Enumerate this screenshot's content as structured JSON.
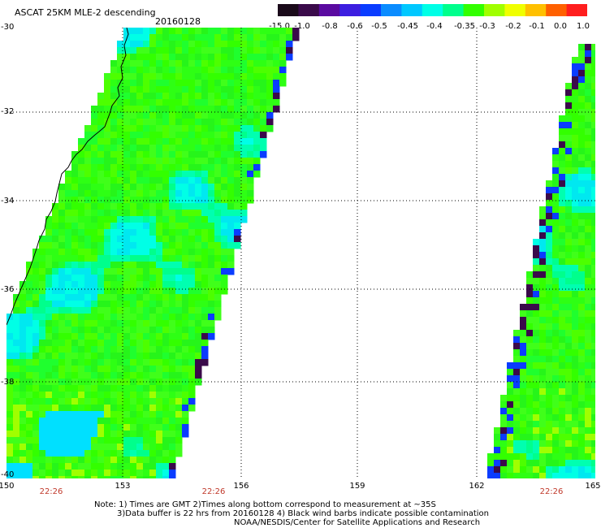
{
  "title": "ASCAT 25KM MLE-2 descending",
  "date": "20160128",
  "colorbar": {
    "ticks": [
      "-15.0",
      "-1.0",
      "-0.8",
      "-0.6",
      "-0.5",
      "-0.45",
      "-0.4",
      "-0.35",
      "-0.3",
      "-0.2",
      "-0.1",
      "0.0",
      "1.0"
    ],
    "colors": [
      "#1a0a1a",
      "#3a0a4a",
      "#5a0aa0",
      "#3c1ee0",
      "#0a3cff",
      "#0a8cff",
      "#00c8ff",
      "#00ffe6",
      "#00ff8c",
      "#32ff00",
      "#a0ff00",
      "#f0ff00",
      "#ffc000",
      "#ff6000",
      "#ff1e1e"
    ]
  },
  "map": {
    "lat_range": [
      -40,
      -30
    ],
    "lon_range": [
      150,
      165
    ],
    "lat_labels": [
      "-30",
      "-32",
      "-34",
      "-36",
      "-38",
      "-40"
    ],
    "lon_labels": [
      "150",
      "153",
      "156",
      "159",
      "162",
      "165"
    ],
    "pass_times": [
      "22:26",
      "22:26",
      "22:26"
    ]
  },
  "notes": {
    "line1": "Note: 1) Times are GMT 2)Times along bottom correspond to measurement at ~35S",
    "line2": "3)Data buffer is 22 hrs from 20160128 4) Black wind barbs indicate possible contamination",
    "line3": "NOAA/NESDIS/Center for Satellite Applications and Research"
  }
}
